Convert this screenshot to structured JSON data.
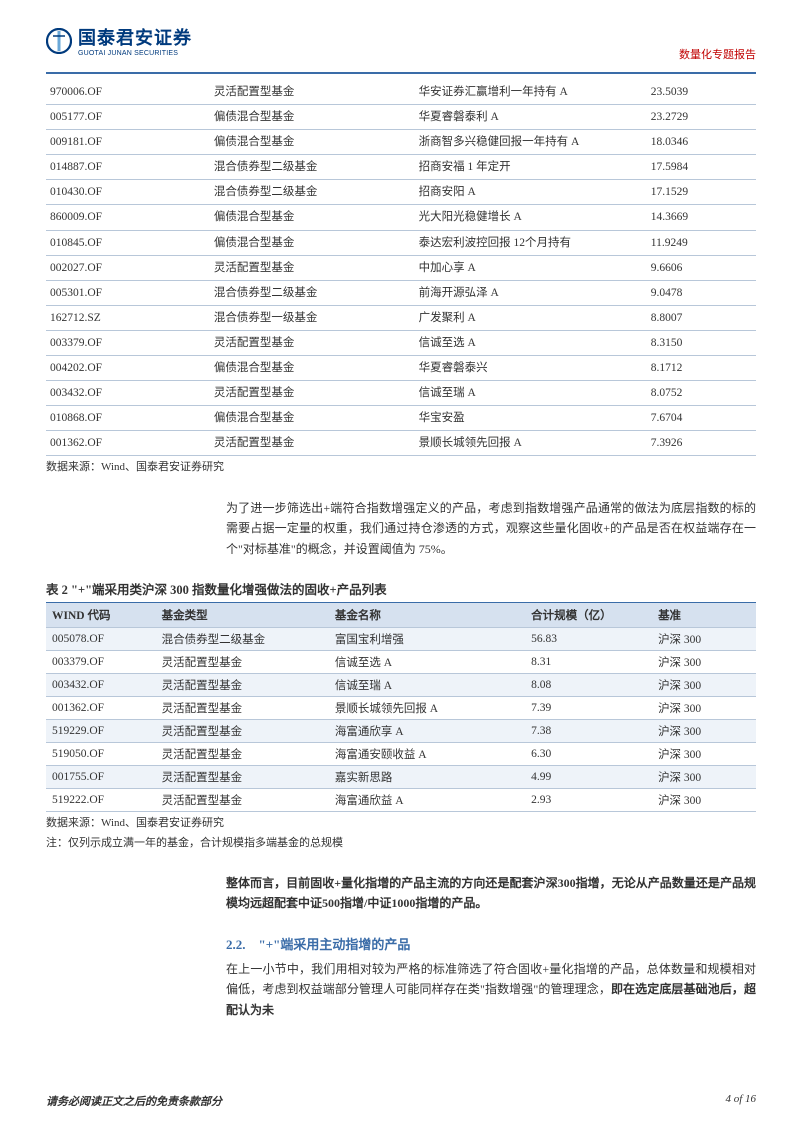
{
  "header": {
    "company_cn": "国泰君安证券",
    "company_en": "GUOTAI JUNAN SECURITIES",
    "report_type": "数量化专题报告",
    "logo_colors": {
      "primary": "#003a7d",
      "accent": "#2f6aa8"
    }
  },
  "table1": {
    "colors": {
      "border": "#b8c7d9"
    },
    "rows": [
      {
        "code": "970006.OF",
        "type": "灵活配置型基金",
        "name": "华安证券汇赢增利一年持有 A",
        "value": "23.5039"
      },
      {
        "code": "005177.OF",
        "type": "偏债混合型基金",
        "name": "华夏睿磐泰利 A",
        "value": "23.2729"
      },
      {
        "code": "009181.OF",
        "type": "偏债混合型基金",
        "name": "浙商智多兴稳健回报一年持有 A",
        "value": "18.0346"
      },
      {
        "code": "014887.OF",
        "type": "混合债券型二级基金",
        "name": "招商安福 1 年定开",
        "value": "17.5984"
      },
      {
        "code": "010430.OF",
        "type": "混合债券型二级基金",
        "name": "招商安阳 A",
        "value": "17.1529"
      },
      {
        "code": "860009.OF",
        "type": "偏债混合型基金",
        "name": "光大阳光稳健增长 A",
        "value": "14.3669"
      },
      {
        "code": "010845.OF",
        "type": "偏债混合型基金",
        "name": "泰达宏利波控回报 12个月持有",
        "value": "11.9249"
      },
      {
        "code": "002027.OF",
        "type": "灵活配置型基金",
        "name": "中加心享 A",
        "value": "9.6606"
      },
      {
        "code": "005301.OF",
        "type": "混合债券型二级基金",
        "name": "前海开源弘泽 A",
        "value": "9.0478"
      },
      {
        "code": "162712.SZ",
        "type": "混合债券型一级基金",
        "name": "广发聚利 A",
        "value": "8.8007"
      },
      {
        "code": "003379.OF",
        "type": "灵活配置型基金",
        "name": "信诚至选 A",
        "value": "8.3150"
      },
      {
        "code": "004202.OF",
        "type": "偏债混合型基金",
        "name": "华夏睿磐泰兴",
        "value": "8.1712"
      },
      {
        "code": "003432.OF",
        "type": "灵活配置型基金",
        "name": "信诚至瑞 A",
        "value": "8.0752"
      },
      {
        "code": "010868.OF",
        "type": "偏债混合型基金",
        "name": "华宝安盈",
        "value": "7.6704"
      },
      {
        "code": "001362.OF",
        "type": "灵活配置型基金",
        "name": "景顺长城领先回报 A",
        "value": "7.3926"
      }
    ],
    "source": "数据来源：Wind、国泰君安证券研究"
  },
  "para1": "为了进一步筛选出+端符合指数增强定义的产品，考虑到指数增强产品通常的做法为底层指数的标的需要占据一定量的权重，我们通过持仓渗透的方式，观察这些量化固收+的产品是否在权益端存在一个\"对标基准\"的概念，并设置阈值为 75%。",
  "table2": {
    "title": "表 2 \"+\"端采用类沪深 300 指数量化增强做法的固收+产品列表",
    "colors": {
      "header_bg": "#d6e1ef",
      "header_border": "#3a6ca8",
      "row_border": "#b8c7d9",
      "alt_bg": "#eef3f9"
    },
    "columns": [
      "WIND 代码",
      "基金类型",
      "基金名称",
      "合计规模（亿）",
      "基准"
    ],
    "rows": [
      {
        "code": "005078.OF",
        "type": "混合债券型二级基金",
        "name": "富国宝利增强",
        "value": "56.83",
        "bm": "沪深 300"
      },
      {
        "code": "003379.OF",
        "type": "灵活配置型基金",
        "name": "信诚至选 A",
        "value": "8.31",
        "bm": "沪深 300"
      },
      {
        "code": "003432.OF",
        "type": "灵活配置型基金",
        "name": "信诚至瑞 A",
        "value": "8.08",
        "bm": "沪深 300"
      },
      {
        "code": "001362.OF",
        "type": "灵活配置型基金",
        "name": "景顺长城领先回报 A",
        "value": "7.39",
        "bm": "沪深 300"
      },
      {
        "code": "519229.OF",
        "type": "灵活配置型基金",
        "name": "海富通欣享 A",
        "value": "7.38",
        "bm": "沪深 300"
      },
      {
        "code": "519050.OF",
        "type": "灵活配置型基金",
        "name": "海富通安颐收益 A",
        "value": "6.30",
        "bm": "沪深 300"
      },
      {
        "code": "001755.OF",
        "type": "灵活配置型基金",
        "name": "嘉实新思路",
        "value": "4.99",
        "bm": "沪深 300"
      },
      {
        "code": "519222.OF",
        "type": "灵活配置型基金",
        "name": "海富通欣益 A",
        "value": "2.93",
        "bm": "沪深 300"
      }
    ],
    "source": "数据来源：Wind、国泰君安证券研究",
    "note": "注：仅列示成立满一年的基金，合计规模指多端基金的总规模"
  },
  "para2": {
    "text": "整体而言，目前固收+量化指增的产品主流的方向还是配套沪深300指增，无论从产品数量还是产品规模均远超配套中证500指增/中证1000指增的产品。"
  },
  "section": {
    "heading": "2.2.　\"+\"端采用主动指增的产品",
    "body_pre": "在上一小节中，我们用相对较为严格的标准筛选了符合固收+量化指增的产品，总体数量和规模相对偏低，考虑到权益端部分管理人可能同样存在类\"指数增强\"的管理理念，",
    "body_bold": "即在选定底层基础池后，超配认为未"
  },
  "footer": {
    "disclaimer": "请务必阅读正文之后的免责条款部分",
    "page": "4 of 16"
  }
}
